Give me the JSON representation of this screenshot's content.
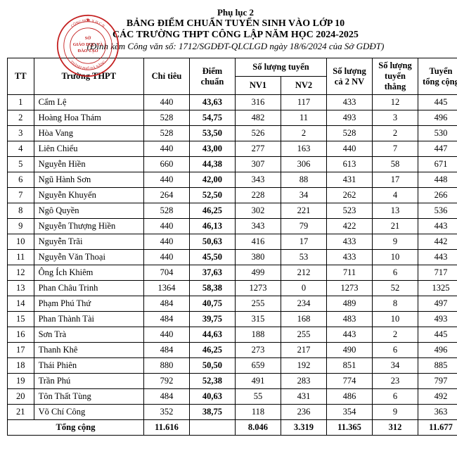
{
  "header": {
    "line1": "Phụ lục 2",
    "line2": "BẢNG ĐIỂM CHUẨN TUYỂN SINH VÀO LỚP 10",
    "line3": "CÁC TRƯỜNG THPT CÔNG LẬP NĂM HỌC 2024-2025",
    "line4": "(Đính kèm Công văn số: 1712/SGDĐT-QLCLGD ngày 18/6/2024 của Sở GDĐT)"
  },
  "stamp": {
    "outer_text": "CỘNG HÒA XÃ HỘI CHỦ NGHĨA",
    "inner_top": "SỞ",
    "inner_mid1": "GIÁO DỤC VÀ",
    "inner_mid2": "ĐÀO TẠO",
    "bottom": "THÀNH PHỐ ĐÀ NẴNG",
    "color": "#c42020"
  },
  "columns": {
    "tt": "TT",
    "school": "Trường THPT",
    "chi_tieu": "Chỉ tiêu",
    "diem_chuan": "Điểm chuẩn",
    "so_luong_tuyen": "Số lượng tuyển",
    "nv1": "NV1",
    "nv2": "NV2",
    "ca2nv": "Số lượng cả 2 NV",
    "thang": "Số lượng tuyển thẳng",
    "tong": "Tuyển tổng cộng"
  },
  "rows": [
    {
      "tt": "1",
      "school": "Cẩm Lệ",
      "chi_tieu": "440",
      "diem": "43,63",
      "nv1": "316",
      "nv2": "117",
      "ca2": "433",
      "thang": "12",
      "tong": "445"
    },
    {
      "tt": "2",
      "school": "Hoàng Hoa Thám",
      "chi_tieu": "528",
      "diem": "54,75",
      "nv1": "482",
      "nv2": "11",
      "ca2": "493",
      "thang": "3",
      "tong": "496"
    },
    {
      "tt": "3",
      "school": "Hòa Vang",
      "chi_tieu": "528",
      "diem": "53,50",
      "nv1": "526",
      "nv2": "2",
      "ca2": "528",
      "thang": "2",
      "tong": "530"
    },
    {
      "tt": "4",
      "school": "Liên Chiểu",
      "chi_tieu": "440",
      "diem": "43,00",
      "nv1": "277",
      "nv2": "163",
      "ca2": "440",
      "thang": "7",
      "tong": "447"
    },
    {
      "tt": "5",
      "school": "Nguyễn Hiền",
      "chi_tieu": "660",
      "diem": "44,38",
      "nv1": "307",
      "nv2": "306",
      "ca2": "613",
      "thang": "58",
      "tong": "671"
    },
    {
      "tt": "6",
      "school": "Ngũ Hành Sơn",
      "chi_tieu": "440",
      "diem": "42,00",
      "nv1": "343",
      "nv2": "88",
      "ca2": "431",
      "thang": "17",
      "tong": "448"
    },
    {
      "tt": "7",
      "school": "Nguyễn Khuyến",
      "chi_tieu": "264",
      "diem": "52,50",
      "nv1": "228",
      "nv2": "34",
      "ca2": "262",
      "thang": "4",
      "tong": "266"
    },
    {
      "tt": "8",
      "school": "Ngô Quyền",
      "chi_tieu": "528",
      "diem": "46,25",
      "nv1": "302",
      "nv2": "221",
      "ca2": "523",
      "thang": "13",
      "tong": "536"
    },
    {
      "tt": "9",
      "school": "Nguyễn Thượng Hiền",
      "chi_tieu": "440",
      "diem": "46,13",
      "nv1": "343",
      "nv2": "79",
      "ca2": "422",
      "thang": "21",
      "tong": "443"
    },
    {
      "tt": "10",
      "school": "Nguyễn Trãi",
      "chi_tieu": "440",
      "diem": "50,63",
      "nv1": "416",
      "nv2": "17",
      "ca2": "433",
      "thang": "9",
      "tong": "442"
    },
    {
      "tt": "11",
      "school": "Nguyễn Văn Thoại",
      "chi_tieu": "440",
      "diem": "45,50",
      "nv1": "380",
      "nv2": "53",
      "ca2": "433",
      "thang": "10",
      "tong": "443"
    },
    {
      "tt": "12",
      "school": "Ông Ích Khiêm",
      "chi_tieu": "704",
      "diem": "37,63",
      "nv1": "499",
      "nv2": "212",
      "ca2": "711",
      "thang": "6",
      "tong": "717"
    },
    {
      "tt": "13",
      "school": "Phan Châu Trinh",
      "chi_tieu": "1364",
      "diem": "58,38",
      "nv1": "1273",
      "nv2": "0",
      "ca2": "1273",
      "thang": "52",
      "tong": "1325"
    },
    {
      "tt": "14",
      "school": "Phạm Phú Thứ",
      "chi_tieu": "484",
      "diem": "40,75",
      "nv1": "255",
      "nv2": "234",
      "ca2": "489",
      "thang": "8",
      "tong": "497"
    },
    {
      "tt": "15",
      "school": "Phan Thành Tài",
      "chi_tieu": "484",
      "diem": "39,75",
      "nv1": "315",
      "nv2": "168",
      "ca2": "483",
      "thang": "10",
      "tong": "493"
    },
    {
      "tt": "16",
      "school": "Sơn Trà",
      "chi_tieu": "440",
      "diem": "44,63",
      "nv1": "188",
      "nv2": "255",
      "ca2": "443",
      "thang": "2",
      "tong": "445"
    },
    {
      "tt": "17",
      "school": "Thanh Khê",
      "chi_tieu": "484",
      "diem": "46,25",
      "nv1": "273",
      "nv2": "217",
      "ca2": "490",
      "thang": "6",
      "tong": "496"
    },
    {
      "tt": "18",
      "school": "Thái Phiên",
      "chi_tieu": "880",
      "diem": "50,50",
      "nv1": "659",
      "nv2": "192",
      "ca2": "851",
      "thang": "34",
      "tong": "885"
    },
    {
      "tt": "19",
      "school": "Trần Phú",
      "chi_tieu": "792",
      "diem": "52,38",
      "nv1": "491",
      "nv2": "283",
      "ca2": "774",
      "thang": "23",
      "tong": "797"
    },
    {
      "tt": "20",
      "school": "Tôn Thất Tùng",
      "chi_tieu": "484",
      "diem": "40,63",
      "nv1": "55",
      "nv2": "431",
      "ca2": "486",
      "thang": "6",
      "tong": "492"
    },
    {
      "tt": "21",
      "school": "Võ Chí Công",
      "chi_tieu": "352",
      "diem": "38,75",
      "nv1": "118",
      "nv2": "236",
      "ca2": "354",
      "thang": "9",
      "tong": "363"
    }
  ],
  "total": {
    "label": "Tổng cộng",
    "chi_tieu": "11.616",
    "diem": "",
    "nv1": "8.046",
    "nv2": "3.319",
    "ca2": "11.365",
    "thang": "312",
    "tong": "11.677"
  }
}
